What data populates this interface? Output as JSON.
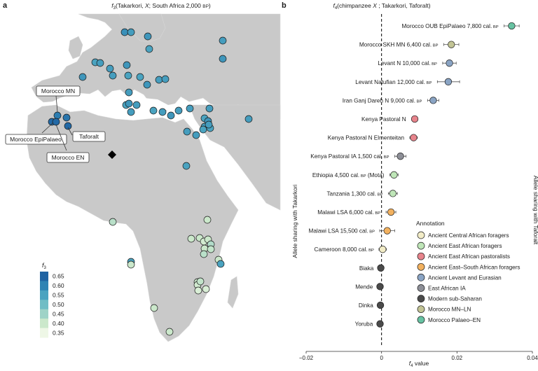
{
  "panel_a": {
    "label": "a",
    "title": "f3(Takarkori, X; South Africa 2,000 BP)",
    "title_parts": {
      "f": "f",
      "sub": "3",
      "rest": "(Takarkori, ",
      "x": "X",
      "rest2": "; South Africa 2,000 ",
      "bp": "BP",
      "close": ")"
    },
    "callouts": [
      "Morocco MN",
      "Morocco EpiPalaeo",
      "Taforalt",
      "Morocco EN"
    ],
    "colorbar": {
      "label_f": "f",
      "label_sub": "3",
      "ticks": [
        "0.65",
        "0.60",
        "0.55",
        "0.50",
        "0.45",
        "0.40",
        "0.35"
      ],
      "colors": [
        "#1f63a3",
        "#2f83b4",
        "#4aa3c0",
        "#70bdc5",
        "#9fd3c7",
        "#cbe8cb",
        "#eef7e6"
      ]
    },
    "sample_points": [
      {
        "site": "s1",
        "f3": 0.58
      },
      {
        "site": "s2",
        "f3": 0.56
      },
      {
        "site": "s3",
        "f3": 0.57
      },
      {
        "site": "s4",
        "f3": 0.56
      },
      {
        "site": "s5",
        "f3": 0.55
      },
      {
        "site": "s6",
        "f3": 0.57
      },
      {
        "site": "s7",
        "f3": 0.55
      },
      {
        "site": "s8",
        "f3": 0.56
      },
      {
        "site": "s9",
        "f3": 0.57
      },
      {
        "site": "s10",
        "f3": 0.56
      },
      {
        "site": "s11",
        "f3": 0.56
      },
      {
        "site": "s12",
        "f3": 0.55
      },
      {
        "site": "s13",
        "f3": 0.57
      },
      {
        "site": "s14",
        "f3": 0.55
      },
      {
        "site": "s15",
        "f3": 0.56
      },
      {
        "site": "s16",
        "f3": 0.56
      },
      {
        "site": "s17",
        "f3": 0.57
      },
      {
        "site": "s18",
        "f3": 0.56
      },
      {
        "site": "s19",
        "f3": 0.55
      },
      {
        "site": "s20",
        "f3": 0.56
      },
      {
        "site": "s21",
        "f3": 0.57
      },
      {
        "site": "s22",
        "f3": 0.56
      },
      {
        "site": "s23",
        "f3": 0.55
      },
      {
        "site": "s24",
        "f3": 0.56
      },
      {
        "site": "s25",
        "f3": 0.57
      },
      {
        "site": "s26",
        "f3": 0.56
      },
      {
        "site": "s27",
        "f3": 0.56
      },
      {
        "site": "s28",
        "f3": 0.56
      },
      {
        "site": "s29",
        "f3": 0.55
      },
      {
        "site": "s30",
        "f3": 0.56
      },
      {
        "site": "s31",
        "f3": 0.57
      },
      {
        "site": "s32",
        "f3": 0.56
      },
      {
        "site": "s33",
        "f3": 0.55
      },
      {
        "site": "s34",
        "f3": 0.56
      },
      {
        "site": "s35",
        "f3": 0.55
      },
      {
        "site": "s36",
        "f3": 0.56
      },
      {
        "site": "s37",
        "f3": 0.56
      },
      {
        "site": "Morocco MN",
        "f3": 0.61
      },
      {
        "site": "Morocco EpiPalaeo A",
        "f3": 0.64
      },
      {
        "site": "Morocco EpiPalaeo B",
        "f3": 0.64
      },
      {
        "site": "Morocco EN",
        "f3": 0.62
      },
      {
        "site": "Taforalt",
        "f3": 0.64
      },
      {
        "site": "s43",
        "f3": 0.55
      },
      {
        "site": "s44",
        "f3": 0.42
      },
      {
        "site": "s45",
        "f3": 0.4
      },
      {
        "site": "s46",
        "f3": 0.4
      },
      {
        "site": "s47",
        "f3": 0.4
      },
      {
        "site": "s48",
        "f3": 0.39
      },
      {
        "site": "s49",
        "f3": 0.4
      },
      {
        "site": "s50",
        "f3": 0.43
      },
      {
        "site": "s51",
        "f3": 0.4
      },
      {
        "site": "s52",
        "f3": 0.41
      },
      {
        "site": "s53",
        "f3": 0.42
      },
      {
        "site": "s54",
        "f3": 0.4
      },
      {
        "site": "s55",
        "f3": 0.55
      },
      {
        "site": "s56",
        "f3": 0.55
      },
      {
        "site": "s57",
        "f3": 0.4
      },
      {
        "site": "s58",
        "f3": 0.4
      },
      {
        "site": "s59",
        "f3": 0.39
      },
      {
        "site": "s60",
        "f3": 0.38
      },
      {
        "site": "s61",
        "f3": 0.38
      },
      {
        "site": "s62",
        "f3": 0.4
      },
      {
        "site": "s63",
        "f3": 0.4
      },
      {
        "site": "s64",
        "f3": 0.41
      }
    ]
  },
  "chart_data": {
    "type": "scatter",
    "title": "f4(chimpanzee X ; Takarkori, Taforalt)",
    "title_parts": {
      "f": "f",
      "sub": "4",
      "open": "(chimpanzee ",
      "x": "X",
      "rest": " ; Takarkori, Taforalt)"
    },
    "panel_label": "b",
    "xlabel_f": "f",
    "xlabel_sub": "4",
    "xlabel_rest": " value",
    "left_side_label": "Allele sharing with Takarkori",
    "right_side_label": "Allele sharing with Taforalt",
    "xlim": [
      -0.02,
      0.04
    ],
    "xticks": [
      "−0.02",
      "0",
      "0.02",
      "0.04"
    ],
    "xtick_values": [
      -0.02,
      0,
      0.02,
      0.04
    ],
    "zero_line": "dashed",
    "grid": false,
    "legend_position": "bottom-right",
    "legend_title": "Annotation",
    "categories_meta": [
      {
        "name": "Ancient Central African foragers",
        "color": "#f2ecc7"
      },
      {
        "name": "Ancient East African foragers",
        "color": "#bfe6b8"
      },
      {
        "name": "Ancient East African pastoralists",
        "color": "#e7848c"
      },
      {
        "name": "Ancient East–South African foragers",
        "color": "#f2b15f"
      },
      {
        "name": "Ancient Levant and Eurasian",
        "color": "#8aa4c4"
      },
      {
        "name": "East African IA",
        "color": "#8d8f97"
      },
      {
        "name": "Modern sub-Saharan",
        "color": "#4a4a4a"
      },
      {
        "name": "Morocco MN–LN",
        "color": "#c2c495"
      },
      {
        "name": "Morocco Palaeo–EN",
        "color": "#67c2a2"
      }
    ],
    "points": [
      {
        "label": "Morocco OUB EpiPalaeo 7,800 cal.",
        "bp": "BP",
        "value": 0.0345,
        "lo": 0.0325,
        "hi": 0.0365,
        "annotation": "Morocco Palaeo–EN"
      },
      {
        "label": "Morocco SKH MN 6,400 cal.",
        "bp": "BP",
        "value": 0.0185,
        "lo": 0.0165,
        "hi": 0.0205,
        "annotation": "Morocco MN–LN"
      },
      {
        "label": "Levant N 10,000 cal.",
        "bp": "BP",
        "value": 0.018,
        "lo": 0.0162,
        "hi": 0.0198,
        "annotation": "Ancient Levant and Eurasian"
      },
      {
        "label": "Levant Natufian 12,000 cal.",
        "bp": "BP",
        "value": 0.0177,
        "lo": 0.0148,
        "hi": 0.0207,
        "annotation": "Ancient Levant and Eurasian"
      },
      {
        "label": "Iran Ganj Dareh N 9,000 cal.",
        "bp": "BP",
        "value": 0.0137,
        "lo": 0.0122,
        "hi": 0.0152,
        "annotation": "Ancient Levant and Eurasian"
      },
      {
        "label": "Kenya Pastoral N",
        "bp": "",
        "value": 0.0088,
        "lo": 0.008,
        "hi": 0.0096,
        "annotation": "Ancient East African pastoralists"
      },
      {
        "label": "Kenya Pastoral N Elmenteitan",
        "bp": "",
        "value": 0.0085,
        "lo": 0.0075,
        "hi": 0.0095,
        "annotation": "Ancient East African pastoralists"
      },
      {
        "label": "Kenya Pastoral IA 1,500 cal.",
        "bp": "BP",
        "value": 0.005,
        "lo": 0.0035,
        "hi": 0.0065,
        "annotation": "East African IA"
      },
      {
        "label": "Ethiopia 4,500 cal.",
        "bp": "BP",
        "suffix": " (Mota)",
        "value": 0.0033,
        "lo": 0.0022,
        "hi": 0.0044,
        "annotation": "Ancient East African foragers"
      },
      {
        "label": "Tanzania 1,300 cal.",
        "bp": "BP",
        "value": 0.003,
        "lo": 0.0018,
        "hi": 0.0042,
        "annotation": "Ancient East African foragers"
      },
      {
        "label": "Malawi LSA 6,000 cal.",
        "bp": "BP",
        "value": 0.0025,
        "lo": 0.0012,
        "hi": 0.0038,
        "annotation": "Ancient East–South African foragers"
      },
      {
        "label": "Malawi LSA 15,500 cal.",
        "bp": "BP",
        "value": 0.0015,
        "lo": -0.0005,
        "hi": 0.0035,
        "annotation": "Ancient East–South African foragers"
      },
      {
        "label": "Cameroon 8,000 cal.",
        "bp": "BP",
        "value": 0.0003,
        "lo": -0.0007,
        "hi": 0.0013,
        "annotation": "Ancient Central African foragers"
      },
      {
        "label": "Biaka",
        "bp": "",
        "value": -0.0002,
        "lo": -0.0008,
        "hi": 0.0004,
        "annotation": "Modern sub-Saharan"
      },
      {
        "label": "Mende",
        "bp": "",
        "value": -0.0004,
        "lo": -0.001,
        "hi": 0.0002,
        "annotation": "Modern sub-Saharan"
      },
      {
        "label": "Dinka",
        "bp": "",
        "value": -0.0003,
        "lo": -0.0009,
        "hi": 0.0003,
        "annotation": "Modern sub-Saharan"
      },
      {
        "label": "Yoruba",
        "bp": "",
        "value": -0.0004,
        "lo": -0.001,
        "hi": 0.0002,
        "annotation": "Modern sub-Saharan"
      }
    ]
  }
}
